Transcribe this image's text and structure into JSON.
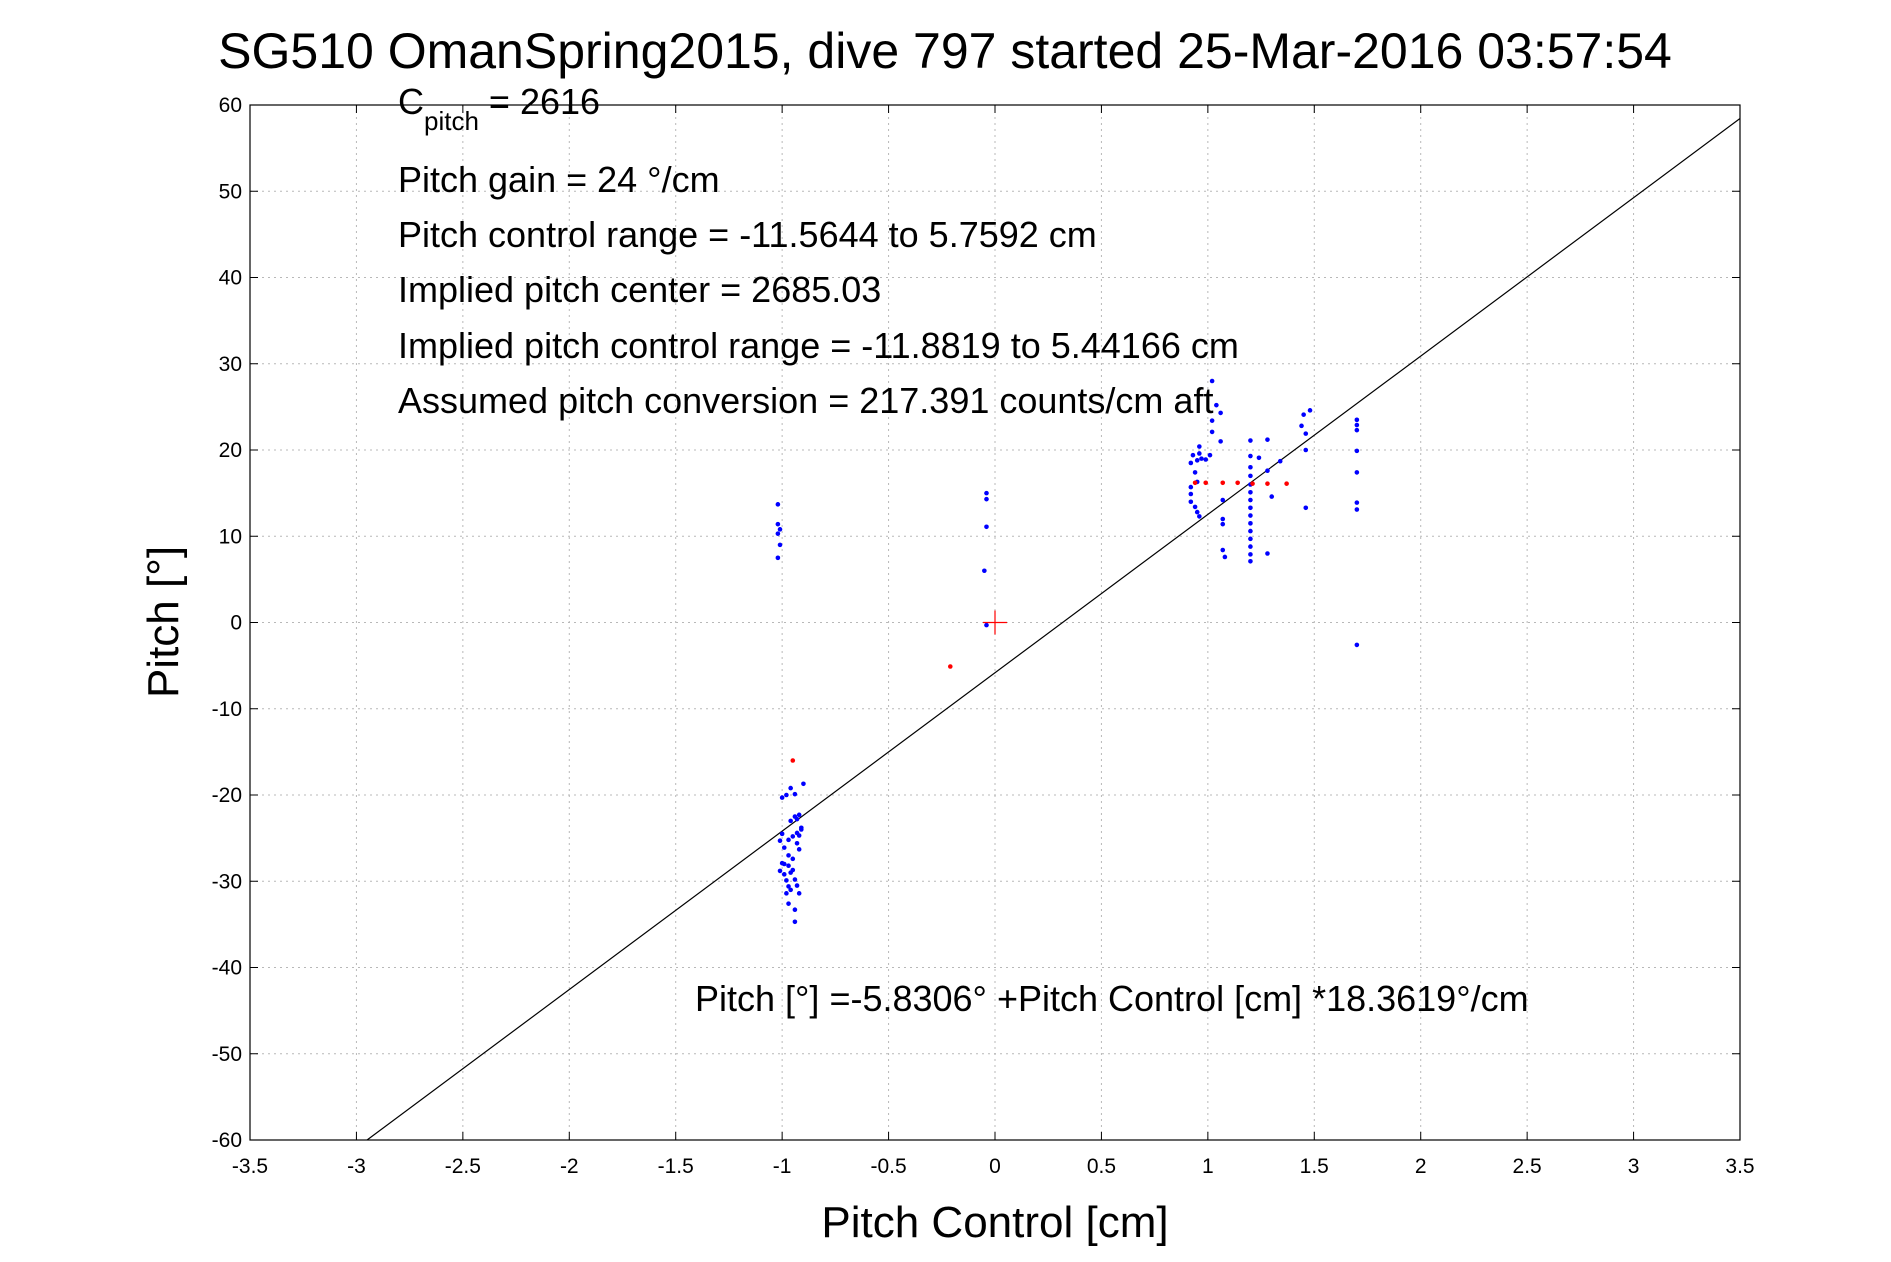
{
  "chart_data": {
    "type": "scatter",
    "title": "SG510 OmanSpring2015, dive 797 started 25-Mar-2016 03:57:54",
    "xlabel": "Pitch Control [cm]",
    "ylabel": "Pitch [°]",
    "xlim": [
      -3.5,
      3.5
    ],
    "ylim": [
      -60,
      60
    ],
    "x_ticks": [
      -3.5,
      -3,
      -2.5,
      -2,
      -1.5,
      -1,
      -0.5,
      0,
      0.5,
      1,
      1.5,
      2,
      2.5,
      3,
      3.5
    ],
    "x_tick_labels": [
      "-3.5",
      "-3",
      "-2.5",
      "-2",
      "-1.5",
      "-1",
      "-0.5",
      "0",
      "0.5",
      "1",
      "1.5",
      "2",
      "2.5",
      "3",
      "3.5"
    ],
    "y_ticks": [
      -60,
      -50,
      -40,
      -30,
      -20,
      -10,
      0,
      10,
      20,
      30,
      40,
      50,
      60
    ],
    "y_tick_labels": [
      "-60",
      "-50",
      "-40",
      "-30",
      "-20",
      "-10",
      "0",
      "10",
      "20",
      "30",
      "40",
      "50",
      "60"
    ],
    "grid": true,
    "colors": {
      "blue_points": "#0000ff",
      "red_points": "#ff0000",
      "fit_line": "#000000",
      "center_marker": "#ff0000"
    },
    "fit_line": {
      "intercept": -5.8306,
      "slope": 18.3619
    },
    "center_marker": {
      "x": 0,
      "y": 0
    },
    "series": [
      {
        "color": "blue",
        "points": [
          [
            -1.02,
            13.7
          ],
          [
            -1.02,
            11.4
          ],
          [
            -1.01,
            10.8
          ],
          [
            -1.02,
            10.3
          ],
          [
            -1.01,
            9.0
          ],
          [
            -1.02,
            7.5
          ],
          [
            -0.04,
            15.0
          ],
          [
            -0.04,
            14.3
          ],
          [
            -0.04,
            11.1
          ],
          [
            -0.05,
            6.0
          ],
          [
            -0.04,
            -0.3
          ],
          [
            -1.0,
            -20.3
          ],
          [
            -0.98,
            -20.0
          ],
          [
            -0.96,
            -19.2
          ],
          [
            -0.94,
            -19.9
          ],
          [
            -0.92,
            -22.3
          ],
          [
            -0.93,
            -22.8
          ],
          [
            -0.91,
            -23.8
          ],
          [
            -0.9,
            -18.7
          ],
          [
            -0.93,
            -24.4
          ],
          [
            -1.0,
            -24.5
          ],
          [
            -1.01,
            -25.3
          ],
          [
            -0.99,
            -26.1
          ],
          [
            -0.97,
            -25.2
          ],
          [
            -0.95,
            -24.8
          ],
          [
            -0.92,
            -24.7
          ],
          [
            -0.97,
            -27.0
          ],
          [
            -1.0,
            -27.9
          ],
          [
            -1.01,
            -28.8
          ],
          [
            -0.99,
            -28.0
          ],
          [
            -0.97,
            -28.2
          ],
          [
            -0.96,
            -29.0
          ],
          [
            -0.98,
            -29.9
          ],
          [
            -0.97,
            -30.6
          ],
          [
            -0.98,
            -31.4
          ],
          [
            -0.96,
            -31.0
          ],
          [
            -0.95,
            -28.7
          ],
          [
            -0.94,
            -29.8
          ],
          [
            -0.93,
            -30.5
          ],
          [
            -0.92,
            -31.4
          ],
          [
            -0.97,
            -32.6
          ],
          [
            -0.94,
            -33.3
          ],
          [
            -0.94,
            -34.7
          ],
          [
            -0.96,
            -23.0
          ],
          [
            -0.94,
            -22.5
          ],
          [
            -0.92,
            -26.3
          ],
          [
            -0.91,
            -24.0
          ],
          [
            -0.99,
            -29.2
          ],
          [
            -0.95,
            -27.4
          ],
          [
            -0.93,
            -25.6
          ],
          [
            0.92,
            15.7
          ],
          [
            0.92,
            14.9
          ],
          [
            0.92,
            14.0
          ],
          [
            0.92,
            18.5
          ],
          [
            0.93,
            19.4
          ],
          [
            0.94,
            17.4
          ],
          [
            0.95,
            16.3
          ],
          [
            0.95,
            18.8
          ],
          [
            0.96,
            19.6
          ],
          [
            0.96,
            20.4
          ],
          [
            0.97,
            19.0
          ],
          [
            0.94,
            13.4
          ],
          [
            0.95,
            12.8
          ],
          [
            0.96,
            12.3
          ],
          [
            0.99,
            18.9
          ],
          [
            1.01,
            19.4
          ],
          [
            1.02,
            28.0
          ],
          [
            1.04,
            25.2
          ],
          [
            1.06,
            24.3
          ],
          [
            1.02,
            23.4
          ],
          [
            1.02,
            22.1
          ],
          [
            1.06,
            21.0
          ],
          [
            1.07,
            14.2
          ],
          [
            1.07,
            12.0
          ],
          [
            1.07,
            11.4
          ],
          [
            1.07,
            8.4
          ],
          [
            1.08,
            7.6
          ],
          [
            1.2,
            21.1
          ],
          [
            1.2,
            19.3
          ],
          [
            1.2,
            18.0
          ],
          [
            1.2,
            17.0
          ],
          [
            1.2,
            16.0
          ],
          [
            1.2,
            15.1
          ],
          [
            1.2,
            14.2
          ],
          [
            1.2,
            13.3
          ],
          [
            1.2,
            12.4
          ],
          [
            1.2,
            11.5
          ],
          [
            1.2,
            10.6
          ],
          [
            1.2,
            9.7
          ],
          [
            1.2,
            8.8
          ],
          [
            1.2,
            7.9
          ],
          [
            1.2,
            7.1
          ],
          [
            1.24,
            19.1
          ],
          [
            1.28,
            21.2
          ],
          [
            1.28,
            17.6
          ],
          [
            1.28,
            8.0
          ],
          [
            1.3,
            14.6
          ],
          [
            1.34,
            18.7
          ],
          [
            1.44,
            22.8
          ],
          [
            1.45,
            24.1
          ],
          [
            1.46,
            21.9
          ],
          [
            1.46,
            20.0
          ],
          [
            1.46,
            13.3
          ],
          [
            1.48,
            24.6
          ],
          [
            1.7,
            23.5
          ],
          [
            1.7,
            22.9
          ],
          [
            1.7,
            22.3
          ],
          [
            1.7,
            19.9
          ],
          [
            1.7,
            17.4
          ],
          [
            1.7,
            13.9
          ],
          [
            1.7,
            13.1
          ],
          [
            1.7,
            -2.6
          ]
        ]
      },
      {
        "color": "red",
        "points": [
          [
            -0.21,
            -5.1
          ],
          [
            -0.95,
            -16.0
          ],
          [
            0.94,
            16.2
          ],
          [
            0.99,
            16.2
          ],
          [
            1.07,
            16.2
          ],
          [
            1.14,
            16.2
          ],
          [
            1.21,
            16.1
          ],
          [
            1.28,
            16.1
          ],
          [
            1.37,
            16.1
          ]
        ]
      }
    ]
  },
  "annotations": {
    "c_pitch_main": "C",
    "c_pitch_sub": "pitch",
    "c_pitch_value": " = 2616",
    "pitch_gain": "Pitch gain = 24 °/cm",
    "pitch_control_range": "Pitch control range = -11.5644 to 5.7592 cm",
    "implied_center": "Implied pitch center = 2685.03",
    "implied_range": "Implied pitch control range = -11.8819 to 5.44166 cm",
    "assumed_conversion": "Assumed pitch conversion = 217.391 counts/cm aft",
    "fit_equation": "Pitch [°] =-5.8306° +Pitch Control [cm] *18.3619°/cm"
  }
}
